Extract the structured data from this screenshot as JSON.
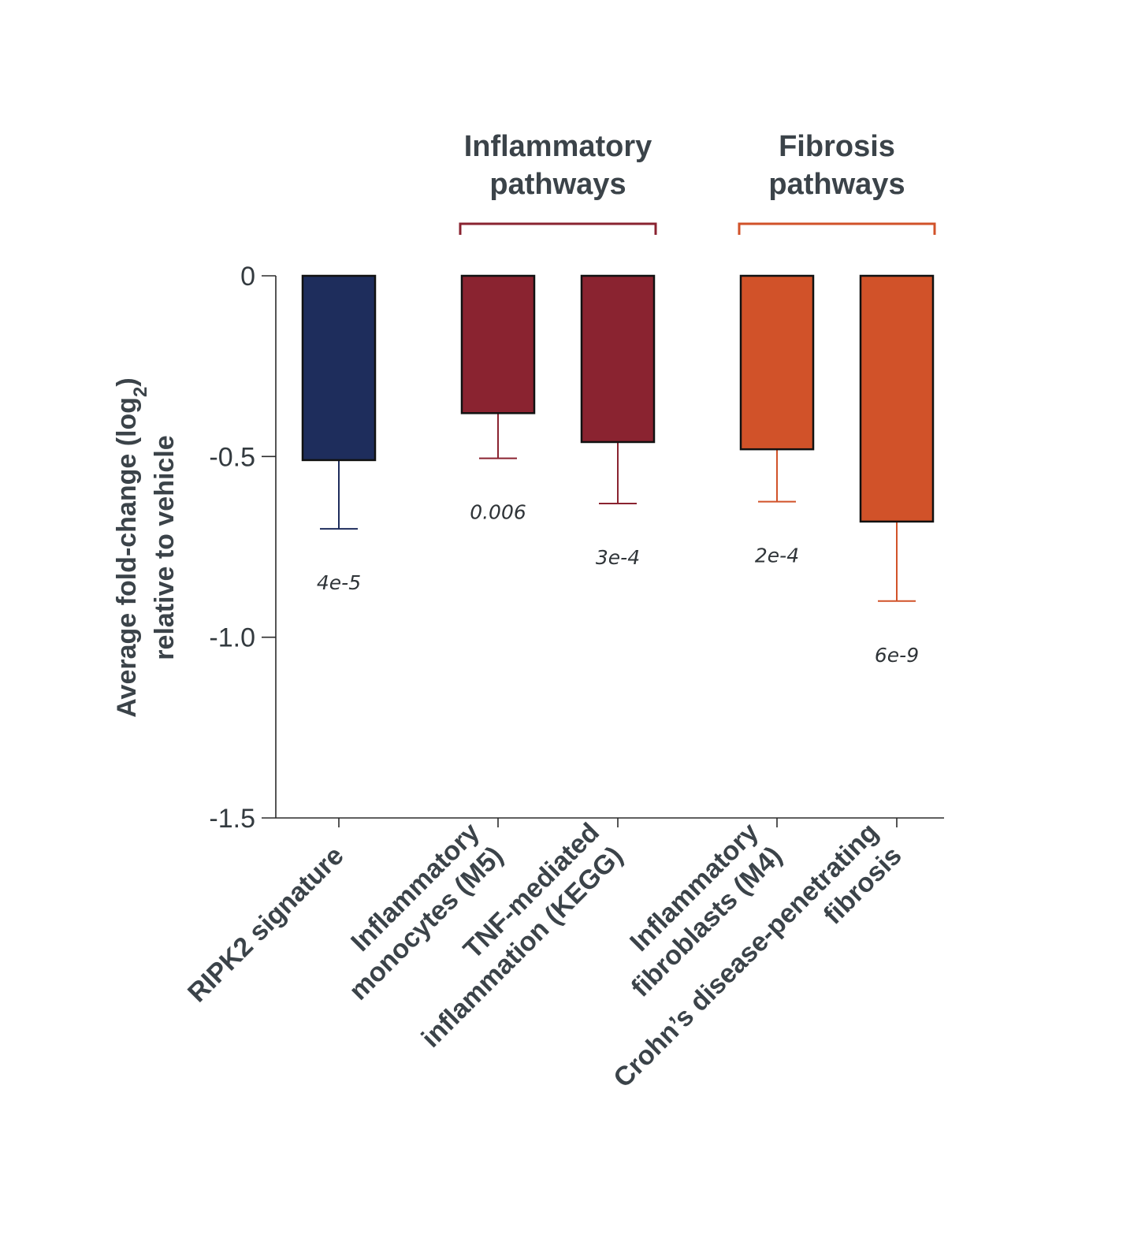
{
  "chart_data": {
    "type": "bar",
    "ylabel_line1": "Average fold-change (log",
    "ylabel_sub": "2",
    "ylabel_close": ")",
    "ylabel_line2": "relative to vehicle",
    "ylim": [
      -1.5,
      0
    ],
    "yticks": [
      0,
      -0.5,
      -1.0,
      -1.5
    ],
    "ytick_labels": [
      "0",
      "-0.5",
      "-1.0",
      "-1.5"
    ],
    "categories": [
      [
        "RIPK2 signature"
      ],
      [
        "Inflammatory",
        "monocytes (M5)"
      ],
      [
        "TNF-mediated",
        "inflammation (KEGG)"
      ],
      [
        "Inflammatory",
        "fibroblasts (M4)"
      ],
      [
        "Crohn’s disease-penetrating",
        "fibrosis"
      ]
    ],
    "values": [
      -0.51,
      -0.38,
      -0.46,
      -0.48,
      -0.68
    ],
    "error": [
      0.19,
      0.125,
      0.17,
      0.145,
      0.22
    ],
    "pvalues": [
      "4e-5",
      "0.006",
      "3e-4",
      "2e-4",
      "6e-9"
    ],
    "bar_colors": [
      "#1e2d5c",
      "#8a2330",
      "#8a2330",
      "#d15229",
      "#d15229"
    ],
    "groups": [
      {
        "label": [
          "Inflammatory",
          "pathways"
        ],
        "categories": [
          1,
          2
        ],
        "color": "#8a2330"
      },
      {
        "label": [
          "Fibrosis",
          "pathways"
        ],
        "categories": [
          3,
          4
        ],
        "color": "#d15229"
      }
    ],
    "grid": false,
    "legend": "none"
  }
}
